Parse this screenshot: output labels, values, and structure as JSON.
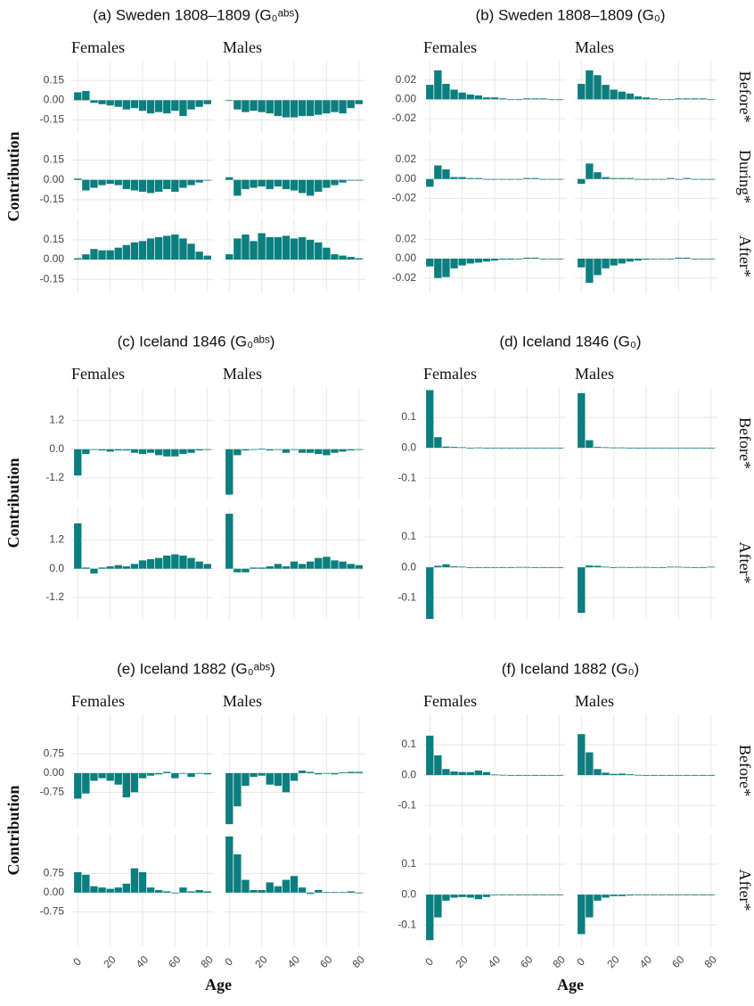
{
  "chart_data": [
    {
      "type": "bar",
      "title": "(a) Sweden 1808–1809 (G₀ᵃᵇˢ)",
      "ylabel": "Contribution",
      "color": "#0b7f7f",
      "columns": [
        "Females",
        "Males"
      ],
      "x": [
        0,
        5,
        10,
        15,
        20,
        25,
        30,
        35,
        40,
        45,
        50,
        55,
        60,
        65,
        70,
        75,
        80
      ],
      "xlim": [
        -4,
        84
      ],
      "xticks": [
        0,
        20,
        40,
        60,
        80
      ],
      "ylim": [
        -0.25,
        0.3
      ],
      "yticks": [
        {
          "value": 0.15,
          "label": "0.15"
        },
        {
          "value": 0,
          "label": "0.00"
        },
        {
          "value": -0.15,
          "label": "-0.15"
        }
      ],
      "values": [
        [
          [
            0.06,
            0.07,
            -0.02,
            -0.03,
            -0.04,
            -0.05,
            -0.07,
            -0.06,
            -0.08,
            -0.1,
            -0.09,
            -0.1,
            -0.08,
            -0.12,
            -0.07,
            -0.05,
            -0.03
          ],
          [
            0,
            -0.07,
            -0.09,
            -0.08,
            -0.09,
            -0.1,
            -0.12,
            -0.13,
            -0.13,
            -0.12,
            -0.12,
            -0.11,
            -0.1,
            -0.09,
            -0.1,
            -0.06,
            -0.03
          ]
        ],
        [
          [
            0.01,
            -0.08,
            -0.06,
            -0.04,
            -0.03,
            -0.04,
            -0.07,
            -0.08,
            -0.09,
            -0.1,
            -0.09,
            -0.07,
            -0.09,
            -0.06,
            -0.04,
            -0.02,
            0
          ],
          [
            0.02,
            -0.12,
            -0.07,
            -0.06,
            -0.05,
            -0.07,
            -0.05,
            -0.07,
            -0.08,
            -0.1,
            -0.12,
            -0.09,
            -0.06,
            -0.04,
            -0.02,
            0,
            0
          ]
        ],
        [
          [
            0.01,
            0.04,
            0.08,
            0.07,
            0.07,
            0.09,
            0.11,
            0.13,
            0.14,
            0.16,
            0.17,
            0.18,
            0.19,
            0.16,
            0.12,
            0.06,
            0.03
          ],
          [
            0.04,
            0.16,
            0.19,
            0.14,
            0.2,
            0.17,
            0.17,
            0.18,
            0.16,
            0.17,
            0.15,
            0.13,
            0.09,
            0.04,
            0.03,
            0.02,
            0.01
          ]
        ]
      ]
    },
    {
      "type": "bar",
      "title": "(b) Sweden 1808–1809 (G₀)",
      "color": "#0b7f7f",
      "columns": [
        "Females",
        "Males"
      ],
      "rows": [
        "Before*",
        "During*",
        "After*"
      ],
      "x": [
        0,
        5,
        10,
        15,
        20,
        25,
        30,
        35,
        40,
        45,
        50,
        55,
        60,
        65,
        70,
        75,
        80
      ],
      "xlim": [
        -4,
        84
      ],
      "xticks": [
        0,
        20,
        40,
        60,
        80
      ],
      "ylim": [
        -0.035,
        0.04
      ],
      "yticks": [
        {
          "value": 0.02,
          "label": "0.02"
        },
        {
          "value": 0,
          "label": "0.00"
        },
        {
          "value": -0.02,
          "label": "-0.02"
        }
      ],
      "values": [
        [
          [
            0.015,
            0.03,
            0.016,
            0.01,
            0.007,
            0.005,
            0.004,
            0.002,
            0.002,
            0.001,
            0,
            0,
            0.001,
            0.001,
            0.001,
            0,
            0
          ],
          [
            0.016,
            0.03,
            0.025,
            0.015,
            0.01,
            0.008,
            0.006,
            0.003,
            0.002,
            0.001,
            0,
            0,
            0.001,
            0.001,
            0.001,
            0.001,
            0
          ]
        ],
        [
          [
            -0.008,
            0.014,
            0.01,
            0.002,
            0.002,
            0.001,
            0.001,
            0,
            0,
            0,
            0,
            0,
            0.001,
            0.001,
            0,
            0,
            0
          ],
          [
            -0.005,
            0.016,
            0.007,
            0.002,
            0.001,
            0.001,
            0.001,
            0,
            0,
            0,
            0,
            0.001,
            0,
            0.001,
            0,
            0,
            0
          ]
        ],
        [
          [
            -0.008,
            -0.02,
            -0.019,
            -0.01,
            -0.007,
            -0.005,
            -0.004,
            -0.003,
            -0.002,
            -0.001,
            -0.001,
            0,
            0.001,
            0.001,
            0,
            0,
            0
          ],
          [
            -0.009,
            -0.025,
            -0.017,
            -0.01,
            -0.007,
            -0.005,
            -0.003,
            -0.002,
            -0.001,
            0,
            0,
            0,
            0.001,
            0.001,
            0,
            0,
            0
          ]
        ]
      ]
    },
    {
      "type": "bar",
      "title": "(c) Iceland 1846 (G₀ᵃᵇˢ)",
      "ylabel": "Contribution",
      "color": "#0b7f7f",
      "columns": [
        "Females",
        "Males"
      ],
      "x": [
        0,
        5,
        10,
        15,
        20,
        25,
        30,
        35,
        40,
        45,
        50,
        55,
        60,
        65,
        70,
        75,
        80
      ],
      "xlim": [
        -4,
        84
      ],
      "xticks": [
        0,
        20,
        40,
        60,
        80
      ],
      "ylim": [
        -2.1,
        2.6
      ],
      "yticks": [
        1.2,
        {
          "value": 0,
          "label": "0.0"
        },
        -1.2
      ],
      "values": [
        [
          [
            -1.1,
            -0.2,
            0,
            -0.05,
            -0.1,
            -0.05,
            -0.05,
            -0.15,
            -0.2,
            -0.15,
            -0.25,
            -0.3,
            -0.3,
            -0.2,
            -0.15,
            -0.05,
            -0.03
          ],
          [
            -1.9,
            -0.25,
            -0.05,
            -0.03,
            0.02,
            -0.05,
            -0.02,
            -0.15,
            0,
            -0.15,
            -0.15,
            -0.2,
            -0.25,
            -0.15,
            -0.1,
            -0.05,
            -0.03
          ]
        ],
        [
          [
            1.9,
            0.05,
            -0.2,
            0.05,
            0.1,
            0.15,
            0.1,
            0.2,
            0.35,
            0.4,
            0.45,
            0.55,
            0.6,
            0.55,
            0.45,
            0.3,
            0.2
          ],
          [
            2.3,
            -0.15,
            -0.15,
            0.05,
            0.05,
            0.1,
            0.2,
            0.1,
            0.3,
            0.2,
            0.3,
            0.45,
            0.5,
            0.35,
            0.3,
            0.2,
            0.15
          ]
        ]
      ]
    },
    {
      "type": "bar",
      "title": "(d) Iceland 1846 (G₀)",
      "color": "#0b7f7f",
      "columns": [
        "Females",
        "Males"
      ],
      "rows": [
        "Before*",
        "After*"
      ],
      "x": [
        0,
        5,
        10,
        15,
        20,
        25,
        30,
        35,
        40,
        45,
        50,
        55,
        60,
        65,
        70,
        75,
        80
      ],
      "xlim": [
        -4,
        84
      ],
      "xticks": [
        0,
        20,
        40,
        60,
        80
      ],
      "ylim": [
        -0.17,
        0.2
      ],
      "yticks": [
        0.1,
        {
          "value": 0,
          "label": "0.0"
        },
        -0.1
      ],
      "values": [
        [
          [
            0.19,
            0.035,
            0.004,
            0.003,
            0.002,
            0,
            0.001,
            0,
            0,
            0,
            0,
            0,
            -0.001,
            -0.001,
            -0.001,
            0,
            0
          ],
          [
            0.18,
            0.025,
            0.003,
            0.002,
            0.001,
            0.001,
            0,
            0,
            0,
            0,
            0,
            0,
            -0.001,
            -0.001,
            0,
            0,
            0
          ]
        ],
        [
          [
            -0.17,
            0.005,
            0.01,
            0.003,
            0.002,
            -0.002,
            0,
            -0.001,
            -0.001,
            0,
            0,
            0.001,
            0.001,
            0,
            -0.001,
            -0.002,
            0
          ],
          [
            -0.15,
            0.006,
            0.005,
            0.002,
            0,
            0.001,
            0,
            0.001,
            0.001,
            0,
            0,
            0.002,
            0.002,
            0.001,
            0,
            0,
            0.002
          ]
        ]
      ]
    },
    {
      "type": "bar",
      "title": "(e) Iceland 1882 (G₀ᵃᵇˢ)",
      "ylabel": "Contribution",
      "xlabel": "Age",
      "color": "#0b7f7f",
      "columns": [
        "Females",
        "Males"
      ],
      "x": [
        0,
        5,
        10,
        15,
        20,
        25,
        30,
        35,
        40,
        45,
        50,
        55,
        60,
        65,
        70,
        75,
        80
      ],
      "xlim": [
        -4,
        84
      ],
      "xticks": [
        0,
        20,
        40,
        60,
        80
      ],
      "ylim": [
        -2.1,
        2.3
      ],
      "yticks": [
        0.75,
        {
          "value": 0,
          "label": "0.00"
        },
        -0.75
      ],
      "values": [
        [
          [
            -1.0,
            -0.8,
            -0.3,
            -0.2,
            -0.3,
            -0.45,
            -0.95,
            -0.75,
            -0.2,
            -0.1,
            -0.05,
            0.05,
            -0.2,
            0,
            -0.15,
            0,
            -0.05
          ],
          [
            -2.0,
            -1.3,
            -0.5,
            -0.15,
            -0.1,
            -0.45,
            -0.5,
            -0.75,
            -0.3,
            0.1,
            0.05,
            -0.05,
            0,
            -0.05,
            0.03,
            0.05,
            0.05
          ]
        ],
        [
          [
            0.8,
            0.7,
            0.25,
            0.2,
            0.15,
            0.2,
            0.35,
            0.95,
            0.8,
            0.2,
            0.1,
            0.05,
            0,
            0.2,
            0.05,
            0.1,
            0.05
          ],
          [
            2.2,
            1.5,
            0.5,
            0.1,
            0.1,
            0.4,
            0.25,
            0.5,
            0.65,
            0.2,
            -0.05,
            0.1,
            0.02,
            0.02,
            0.02,
            0.05,
            0
          ]
        ]
      ]
    },
    {
      "type": "bar",
      "title": "(f) Iceland 1882 (G₀)",
      "xlabel": "Age",
      "color": "#0b7f7f",
      "columns": [
        "Females",
        "Males"
      ],
      "rows": [
        "Before*",
        "After*"
      ],
      "x": [
        0,
        5,
        10,
        15,
        20,
        25,
        30,
        35,
        40,
        45,
        50,
        55,
        60,
        65,
        70,
        75,
        80
      ],
      "xlim": [
        -4,
        84
      ],
      "xticks": [
        0,
        20,
        40,
        60,
        80
      ],
      "ylim": [
        -0.17,
        0.2
      ],
      "yticks": [
        0.1,
        {
          "value": 0,
          "label": "0.0"
        },
        -0.1
      ],
      "values": [
        [
          [
            0.13,
            0.065,
            0.02,
            0.012,
            0.01,
            0.01,
            0.015,
            0.01,
            0.002,
            0.001,
            0,
            0,
            0,
            0,
            0,
            0,
            0
          ],
          [
            0.135,
            0.075,
            0.02,
            0.008,
            0.004,
            0.005,
            0.003,
            0.001,
            0,
            0,
            0,
            0,
            0,
            0,
            0,
            0,
            0
          ]
        ],
        [
          [
            -0.15,
            -0.075,
            -0.02,
            -0.01,
            -0.008,
            -0.01,
            -0.015,
            -0.008,
            -0.002,
            -0.001,
            0,
            0,
            0,
            0,
            0,
            0,
            0
          ],
          [
            -0.13,
            -0.075,
            -0.02,
            -0.01,
            -0.005,
            -0.005,
            -0.003,
            -0.002,
            0,
            0,
            0,
            0,
            0,
            0,
            0,
            0,
            0
          ]
        ]
      ]
    }
  ]
}
